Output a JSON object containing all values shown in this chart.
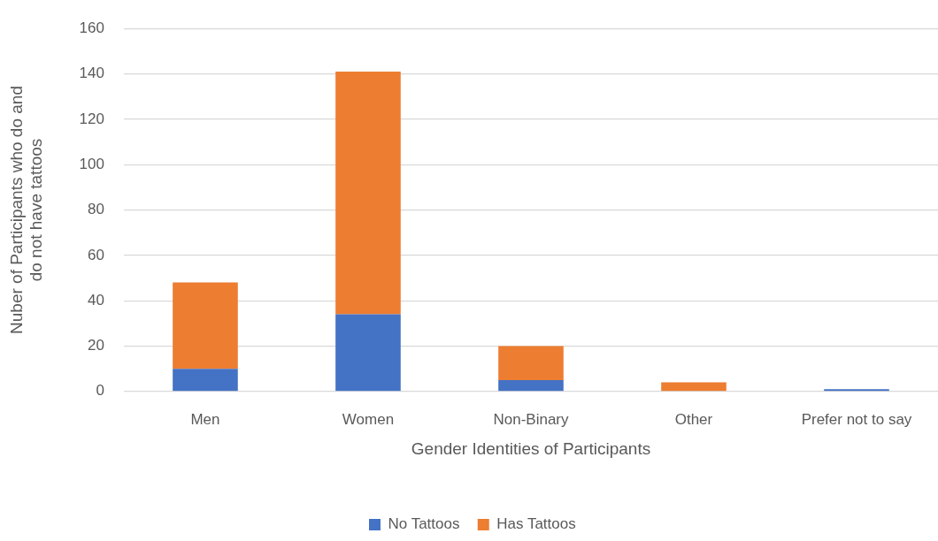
{
  "chart_data": {
    "type": "bar",
    "stacked": true,
    "xlabel": "Gender Identities of Participants",
    "ylabel": "Nuber of Participants who do and do not have tattoos",
    "categories": [
      "Men",
      "Women",
      "Non-Binary",
      "Other",
      "Prefer not to say"
    ],
    "series": [
      {
        "name": "No Tattoos",
        "color": "#4472c4",
        "values": [
          10,
          34,
          5,
          0,
          1
        ]
      },
      {
        "name": "Has Tattoos",
        "color": "#ed7d31",
        "values": [
          38,
          107,
          15,
          4,
          0
        ]
      }
    ],
    "ylim": [
      0,
      160
    ],
    "yticks": [
      0,
      20,
      40,
      60,
      80,
      100,
      120,
      140,
      160
    ],
    "grid": "y",
    "legend": "bottom"
  }
}
